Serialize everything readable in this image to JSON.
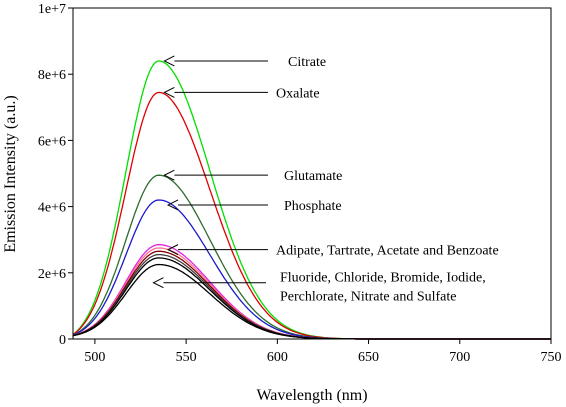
{
  "chart_data": {
    "type": "line",
    "xlabel": "Wavelength (nm)",
    "ylabel": "Emission Intensity (a.u.)",
    "xlim": [
      488,
      750
    ],
    "ylim": [
      0,
      10000000
    ],
    "xticks": [
      500,
      550,
      600,
      650,
      700,
      750
    ],
    "xtick_labels": [
      "500",
      "550",
      "600",
      "650",
      "700",
      "750"
    ],
    "yticks": [
      0,
      2000000,
      4000000,
      6000000,
      8000000,
      10000000
    ],
    "ytick_labels": [
      "0",
      "2e+6",
      "4e+6",
      "6e+6",
      "8e+6",
      "1e+7"
    ],
    "grid": false,
    "colors": {
      "citrate": "#00e000",
      "oxalate": "#e00000",
      "glutamate": "#2e6b2e",
      "phosphate": "#1a1acc",
      "magenta": "#e020e0",
      "pink": "#ff7090",
      "dark_red": "#800000",
      "dark_gray": "#404040",
      "black": "#000000"
    },
    "peak_wavelength": 535,
    "start_wavelength": 488,
    "series": [
      {
        "color_key": "citrate",
        "peak": 8400000,
        "start": 130000
      },
      {
        "color_key": "oxalate",
        "peak": 7450000,
        "start": 130000
      },
      {
        "color_key": "glutamate",
        "peak": 4950000,
        "start": 120000
      },
      {
        "color_key": "phosphate",
        "peak": 4200000,
        "start": 120000
      },
      {
        "color_key": "magenta",
        "peak": 2850000,
        "start": 110000
      },
      {
        "color_key": "pink",
        "peak": 2750000,
        "start": 110000
      },
      {
        "color_key": "dark_red",
        "peak": 2650000,
        "start": 110000
      },
      {
        "color_key": "dark_gray",
        "peak": 2550000,
        "start": 105000
      },
      {
        "color_key": "black",
        "peak": 2450000,
        "start": 100000
      },
      {
        "color_key": "black",
        "peak": 2250000,
        "start": 100000
      }
    ],
    "annotations": [
      {
        "text": "Citrate",
        "arrow_x": 537,
        "arrow_y": 8400000
      },
      {
        "text": "Oxalate",
        "arrow_x": 537,
        "arrow_y": 7450000
      },
      {
        "text": "Glutamate",
        "arrow_x": 537,
        "arrow_y": 4950000
      },
      {
        "text": "Phosphate",
        "arrow_x": 539,
        "arrow_y": 4050000
      },
      {
        "text": "Adipate, Tartrate, Acetate and Benzoate",
        "arrow_x": 539,
        "arrow_y": 2700000
      },
      {
        "text": "Fluoride, Chloride, Bromide, Iodide,",
        "text2": "Perchlorate,  Nitrate and Sulfate",
        "arrow_x": 531,
        "arrow_y": 1700000
      }
    ]
  }
}
